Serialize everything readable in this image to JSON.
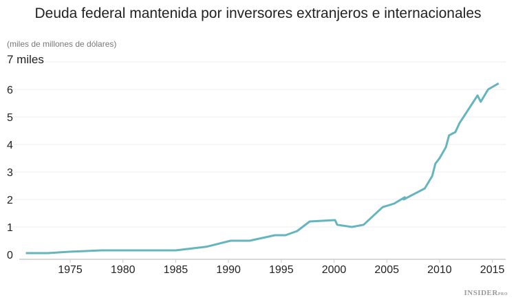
{
  "chart_data": {
    "type": "line",
    "title": "Deuda federal mantenida por inversores extranjeros e internacionales",
    "subtitle": "(miles de millones de dólares)",
    "xlabel": "",
    "ylabel": "",
    "xlim": [
      1970,
      2017
    ],
    "ylim": [
      0,
      7
    ],
    "x_ticks": [
      1975,
      1980,
      1985,
      1990,
      1995,
      2000,
      2005,
      2010,
      2015
    ],
    "y_ticks": [
      "0",
      "1",
      "2",
      "3",
      "4",
      "5",
      "6",
      "7 miles"
    ],
    "grid": true,
    "color": "#64b5bd",
    "x": [
      1970.8,
      1972.9,
      1974.9,
      1978,
      1985,
      1987.9,
      1990.2,
      1992,
      1994.4,
      1995.4,
      1996.5,
      1997.7,
      2000.1,
      2000.3,
      2001.7,
      2002.8,
      2004.6,
      2005.7,
      2006.7,
      2006.6,
      2007.5,
      2008.6,
      2009.3,
      2009.6,
      2010,
      2010.6,
      2010.9,
      2011.5,
      2011.9,
      2013.6,
      2013.9,
      2014.6,
      2015.6
    ],
    "values": [
      0.05,
      0.05,
      0.1,
      0.15,
      0.15,
      0.28,
      0.5,
      0.5,
      0.7,
      0.7,
      0.85,
      1.2,
      1.25,
      1.08,
      1.0,
      1.08,
      1.72,
      1.85,
      2.08,
      2.0,
      2.18,
      2.4,
      2.85,
      3.3,
      3.5,
      3.9,
      4.33,
      4.45,
      4.78,
      5.78,
      5.55,
      6.0,
      6.22
    ]
  },
  "logo": {
    "main": "INSIDER",
    "sup": "PRO"
  }
}
